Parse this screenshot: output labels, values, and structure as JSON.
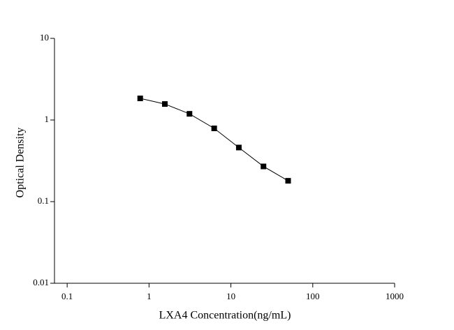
{
  "chart_data": {
    "type": "line",
    "x_label": "LXA4 Concentration(ng/mL)",
    "y_label": "Optical Density",
    "x": [
      0.78,
      1.56,
      3.12,
      6.25,
      12.5,
      25,
      50
    ],
    "series": [
      {
        "values": [
          1.84,
          1.57,
          1.19,
          0.79,
          0.46,
          0.27,
          0.18
        ],
        "color": "#000000"
      }
    ],
    "xlim": [
      0.07,
      1000
    ],
    "ylim": [
      0.01,
      10
    ],
    "xticks": [
      0.1,
      1,
      10,
      100,
      1000
    ],
    "yticks": [
      0.01,
      0.1,
      1,
      10
    ],
    "xscale": "log",
    "yscale": "log",
    "marker": "square"
  }
}
